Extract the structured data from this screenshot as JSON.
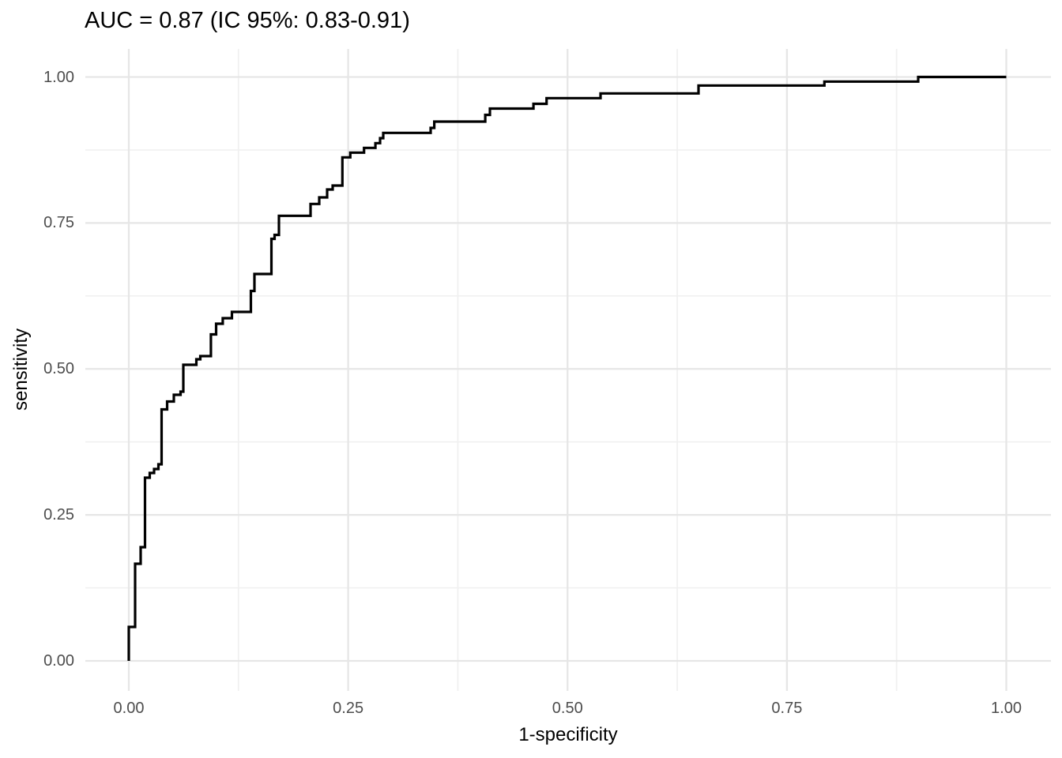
{
  "chart_data": {
    "type": "line",
    "subtype": "roc-step-curve",
    "title": "AUC = 0.87 (IC 95%: 0.83-0.91)",
    "xlabel": "1-specificity",
    "ylabel": "sensitivity",
    "auc": "0.87",
    "ci_95_low": "0.83",
    "ci_95_high": "0.91",
    "xlim": [
      0,
      1
    ],
    "ylim": [
      0,
      1
    ],
    "x_ticks": [
      {
        "value": 0.0,
        "label": "0.00"
      },
      {
        "value": 0.25,
        "label": "0.25"
      },
      {
        "value": 0.5,
        "label": "0.50"
      },
      {
        "value": 0.75,
        "label": "0.75"
      },
      {
        "value": 1.0,
        "label": "1.00"
      }
    ],
    "y_ticks": [
      {
        "value": 0.0,
        "label": "0.00"
      },
      {
        "value": 0.25,
        "label": "0.25"
      },
      {
        "value": 0.5,
        "label": "0.50"
      },
      {
        "value": 0.75,
        "label": "0.75"
      },
      {
        "value": 1.0,
        "label": "1.00"
      }
    ],
    "grid": {
      "major_x": [
        0.0,
        0.25,
        0.5,
        0.75,
        1.0
      ],
      "minor_x": [
        0.125,
        0.375,
        0.625,
        0.875
      ],
      "major_y": [
        0.0,
        0.25,
        0.5,
        0.75,
        1.0
      ],
      "minor_y": [
        0.125,
        0.375,
        0.625,
        0.875
      ],
      "major_color": "#e6e6e6",
      "minor_color": "#f0f0f0"
    },
    "legend": "none",
    "background_color": "#ffffff",
    "line_color": "#000000",
    "tick_label_color": "#4d4d4d",
    "curve_points": [
      [
        0.0,
        0.0
      ],
      [
        0.0,
        0.0581
      ],
      [
        0.0072,
        0.0581
      ],
      [
        0.0072,
        0.1663
      ],
      [
        0.0135,
        0.1663
      ],
      [
        0.0135,
        0.1947
      ],
      [
        0.0185,
        0.1947
      ],
      [
        0.0185,
        0.3137
      ],
      [
        0.0239,
        0.3137
      ],
      [
        0.0239,
        0.3218
      ],
      [
        0.0288,
        0.3218
      ],
      [
        0.0288,
        0.3286
      ],
      [
        0.0338,
        0.3286
      ],
      [
        0.0338,
        0.3367
      ],
      [
        0.0374,
        0.3367
      ],
      [
        0.0374,
        0.4307
      ],
      [
        0.0437,
        0.4307
      ],
      [
        0.0437,
        0.4442
      ],
      [
        0.0513,
        0.4442
      ],
      [
        0.0513,
        0.4557
      ],
      [
        0.059,
        0.4557
      ],
      [
        0.059,
        0.4611
      ],
      [
        0.0621,
        0.4611
      ],
      [
        0.0621,
        0.5071
      ],
      [
        0.077,
        0.5071
      ],
      [
        0.077,
        0.5165
      ],
      [
        0.0815,
        0.5165
      ],
      [
        0.0815,
        0.522
      ],
      [
        0.0936,
        0.522
      ],
      [
        0.0936,
        0.5591
      ],
      [
        0.0995,
        0.5591
      ],
      [
        0.0995,
        0.5774
      ],
      [
        0.1071,
        0.5774
      ],
      [
        0.1071,
        0.5869
      ],
      [
        0.1175,
        0.5869
      ],
      [
        0.1175,
        0.5977
      ],
      [
        0.1391,
        0.5977
      ],
      [
        0.1391,
        0.6335
      ],
      [
        0.1432,
        0.6335
      ],
      [
        0.1432,
        0.6626
      ],
      [
        0.1625,
        0.6626
      ],
      [
        0.1625,
        0.7228
      ],
      [
        0.1661,
        0.7228
      ],
      [
        0.1661,
        0.7295
      ],
      [
        0.1711,
        0.7295
      ],
      [
        0.1711,
        0.7623
      ],
      [
        0.2071,
        0.7623
      ],
      [
        0.2071,
        0.7825
      ],
      [
        0.217,
        0.7825
      ],
      [
        0.217,
        0.7938
      ],
      [
        0.226,
        0.7938
      ],
      [
        0.226,
        0.8073
      ],
      [
        0.2323,
        0.8073
      ],
      [
        0.2323,
        0.8141
      ],
      [
        0.2434,
        0.8141
      ],
      [
        0.2434,
        0.8623
      ],
      [
        0.2524,
        0.8623
      ],
      [
        0.2524,
        0.8705
      ],
      [
        0.2681,
        0.8705
      ],
      [
        0.2681,
        0.8786
      ],
      [
        0.281,
        0.8786
      ],
      [
        0.281,
        0.8867
      ],
      [
        0.2864,
        0.8867
      ],
      [
        0.2864,
        0.8952
      ],
      [
        0.29,
        0.8952
      ],
      [
        0.29,
        0.9043
      ],
      [
        0.344,
        0.9043
      ],
      [
        0.344,
        0.9128
      ],
      [
        0.3481,
        0.9128
      ],
      [
        0.3481,
        0.9236
      ],
      [
        0.4062,
        0.9236
      ],
      [
        0.4062,
        0.9351
      ],
      [
        0.4115,
        0.9351
      ],
      [
        0.4115,
        0.9459
      ],
      [
        0.4611,
        0.9459
      ],
      [
        0.4611,
        0.954
      ],
      [
        0.4761,
        0.954
      ],
      [
        0.4761,
        0.9638
      ],
      [
        0.5376,
        0.9638
      ],
      [
        0.5376,
        0.9719
      ],
      [
        0.6493,
        0.9719
      ],
      [
        0.6493,
        0.9854
      ],
      [
        0.7927,
        0.9854
      ],
      [
        0.7927,
        0.9922
      ],
      [
        0.8996,
        0.9922
      ],
      [
        0.8996,
        1.0
      ],
      [
        1.0,
        1.0
      ]
    ]
  }
}
